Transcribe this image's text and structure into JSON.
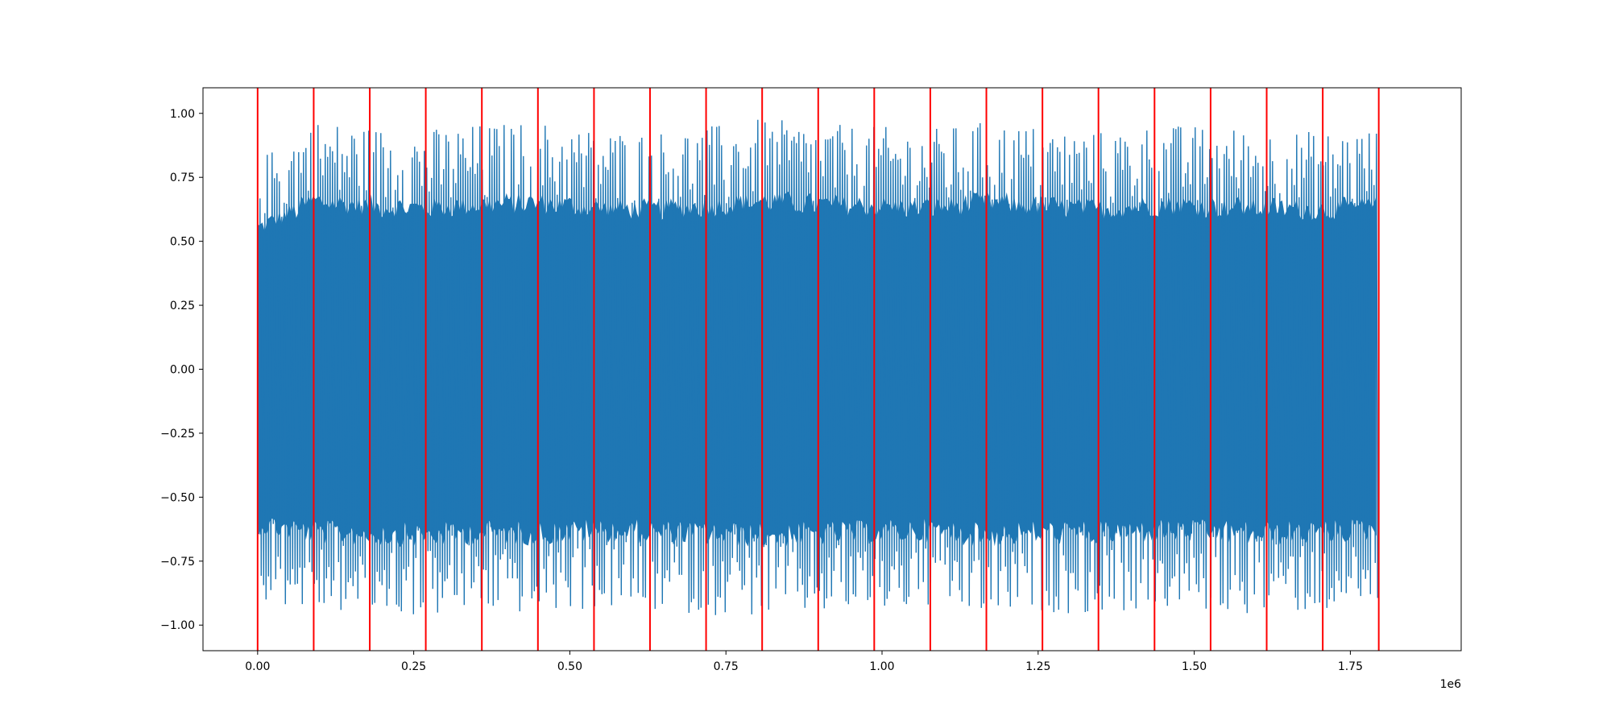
{
  "chart_data": {
    "type": "line",
    "title": "",
    "xlabel": "",
    "ylabel": "",
    "x_offset_label": "1e6",
    "xlim": [
      -0.0875,
      1.9275
    ],
    "ylim": [
      -1.1,
      1.1
    ],
    "x_ticks": [
      0.0,
      0.25,
      0.5,
      0.75,
      1.0,
      1.25,
      1.5,
      1.75
    ],
    "x_tick_labels": [
      "0.00",
      "0.25",
      "0.50",
      "0.75",
      "1.00",
      "1.25",
      "1.50",
      "1.75"
    ],
    "y_ticks": [
      -1.0,
      -0.75,
      -0.5,
      -0.25,
      0.0,
      0.25,
      0.5,
      0.75,
      1.0
    ],
    "y_tick_labels": [
      "−1.00",
      "−0.75",
      "−0.50",
      "−0.25",
      "0.00",
      "0.25",
      "0.50",
      "0.75",
      "1.00"
    ],
    "grid": false,
    "series": [
      {
        "color": "#1f77b4",
        "x_start": 0.0,
        "x_end": 1.7955,
        "upper_envelope": [
          0.82,
          0.98,
          0.95,
          0.94,
          0.96,
          0.97,
          0.94,
          0.93,
          0.95,
          0.98,
          0.96,
          0.95,
          0.94,
          0.97,
          0.95,
          0.93,
          0.96,
          0.95,
          0.94,
          0.93,
          0.95
        ],
        "lower_envelope": [
          -0.9,
          -0.95,
          -0.96,
          -0.97,
          -0.95,
          -0.96,
          -0.94,
          -0.95,
          -0.96,
          -0.97,
          -0.96,
          -0.95,
          -0.94,
          -0.97,
          -0.95,
          -0.96,
          -0.94,
          -0.95,
          -0.96,
          -0.95,
          -0.93
        ]
      }
    ],
    "vlines": {
      "color": "#ff0000",
      "x": [
        0.0,
        0.0898,
        0.1796,
        0.2693,
        0.3591,
        0.4489,
        0.5387,
        0.6284,
        0.7182,
        0.808,
        0.8978,
        0.9875,
        1.0773,
        1.1671,
        1.2569,
        1.3466,
        1.4364,
        1.5262,
        1.616,
        1.7058,
        1.7955
      ]
    }
  }
}
